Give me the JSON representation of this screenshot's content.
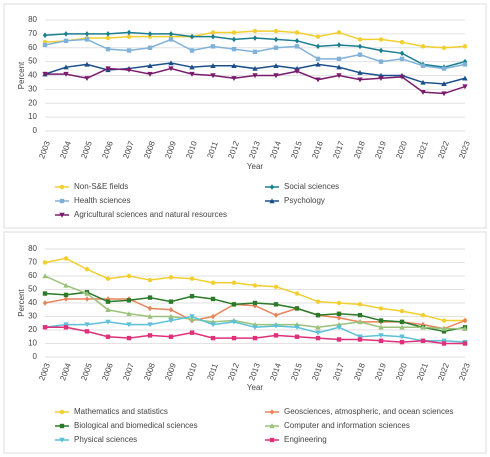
{
  "chart_data": [
    {
      "type": "line",
      "x_label": "Year",
      "y_label": "Percent",
      "categories": [
        "2003",
        "2004",
        "2005",
        "2006",
        "2007",
        "2008",
        "2009",
        "2010",
        "2011",
        "2012",
        "2013",
        "2014",
        "2015",
        "2016",
        "2017",
        "2018",
        "2019",
        "2020",
        "2021",
        "2022",
        "2023"
      ],
      "ylim": [
        0,
        80
      ],
      "yticks": [
        0,
        10,
        20,
        30,
        40,
        50,
        60,
        70,
        80
      ],
      "grid": true,
      "series": [
        {
          "name": "Non-S&E fields",
          "color": "#f2cf2f",
          "marker": "circle",
          "values": [
            64,
            65,
            67,
            67,
            68,
            68,
            68,
            68,
            71,
            71,
            72,
            72,
            71,
            68,
            71,
            66,
            66,
            64,
            61,
            60,
            61
          ]
        },
        {
          "name": "Social sciences",
          "color": "#1b7f8f",
          "marker": "diamond",
          "values": [
            69,
            70,
            70,
            70,
            71,
            70,
            70,
            68,
            68,
            66,
            67,
            66,
            65,
            61,
            62,
            61,
            58,
            56,
            48,
            46,
            50
          ]
        },
        {
          "name": "Health sciences",
          "color": "#80b1d9",
          "marker": "square",
          "values": [
            62,
            65,
            66,
            59,
            58,
            60,
            66,
            58,
            61,
            59,
            57,
            60,
            61,
            52,
            52,
            55,
            50,
            52,
            47,
            45,
            48
          ]
        },
        {
          "name": "Psychology",
          "color": "#1b4f8a",
          "marker": "triangle",
          "values": [
            41,
            46,
            48,
            44,
            45,
            47,
            49,
            46,
            47,
            47,
            45,
            47,
            45,
            48,
            46,
            42,
            40,
            40,
            35,
            34,
            38
          ]
        },
        {
          "name": "Agricultural sciences and natural resources",
          "color": "#7a1b6e",
          "marker": "triangle-down",
          "values": [
            41,
            41,
            38,
            45,
            44,
            41,
            45,
            41,
            40,
            38,
            40,
            40,
            43,
            37,
            40,
            37,
            38,
            39,
            28,
            27,
            32
          ]
        }
      ]
    },
    {
      "type": "line",
      "x_label": "Year",
      "y_label": "Percent",
      "categories": [
        "2003",
        "2004",
        "2005",
        "2006",
        "2007",
        "2008",
        "2009",
        "2010",
        "2011",
        "2012",
        "2013",
        "2014",
        "2015",
        "2016",
        "2017",
        "2018",
        "2019",
        "2020",
        "2021",
        "2022",
        "2023"
      ],
      "ylim": [
        0,
        80
      ],
      "yticks": [
        0,
        10,
        20,
        30,
        40,
        50,
        60,
        70,
        80
      ],
      "grid": true,
      "series": [
        {
          "name": "Mathematics and statistics",
          "color": "#f2cf2f",
          "marker": "circle",
          "values": [
            70,
            73,
            65,
            58,
            60,
            57,
            59,
            58,
            55,
            55,
            53,
            52,
            47,
            41,
            40,
            39,
            36,
            34,
            31,
            27,
            27
          ]
        },
        {
          "name": "Geosciences, atmospheric, and ocean sciences",
          "color": "#e8845a",
          "marker": "diamond",
          "values": [
            40,
            43,
            43,
            43,
            43,
            36,
            35,
            27,
            30,
            39,
            38,
            31,
            36,
            31,
            29,
            26,
            26,
            26,
            24,
            21,
            27
          ]
        },
        {
          "name": "Biological and biomedical sciences",
          "color": "#2a7a2a",
          "marker": "square",
          "values": [
            47,
            46,
            48,
            41,
            42,
            44,
            41,
            45,
            43,
            39,
            40,
            39,
            36,
            31,
            32,
            31,
            27,
            26,
            22,
            19,
            22
          ]
        },
        {
          "name": "Computer and information sciences",
          "color": "#9ac27a",
          "marker": "triangle",
          "values": [
            60,
            53,
            47,
            35,
            32,
            30,
            30,
            28,
            26,
            27,
            24,
            24,
            24,
            22,
            24,
            26,
            22,
            22,
            22,
            21,
            21
          ]
        },
        {
          "name": "Physical sciences",
          "color": "#5bc0d8",
          "marker": "triangle-down",
          "values": [
            22,
            24,
            24,
            26,
            24,
            24,
            27,
            30,
            24,
            26,
            22,
            23,
            22,
            18,
            22,
            15,
            16,
            15,
            12,
            12,
            11
          ]
        },
        {
          "name": "Engineering",
          "color": "#e0307a",
          "marker": "square",
          "values": [
            22,
            22,
            19,
            15,
            14,
            16,
            15,
            18,
            14,
            14,
            14,
            16,
            15,
            14,
            13,
            13,
            12,
            11,
            12,
            10,
            10
          ]
        }
      ]
    }
  ]
}
